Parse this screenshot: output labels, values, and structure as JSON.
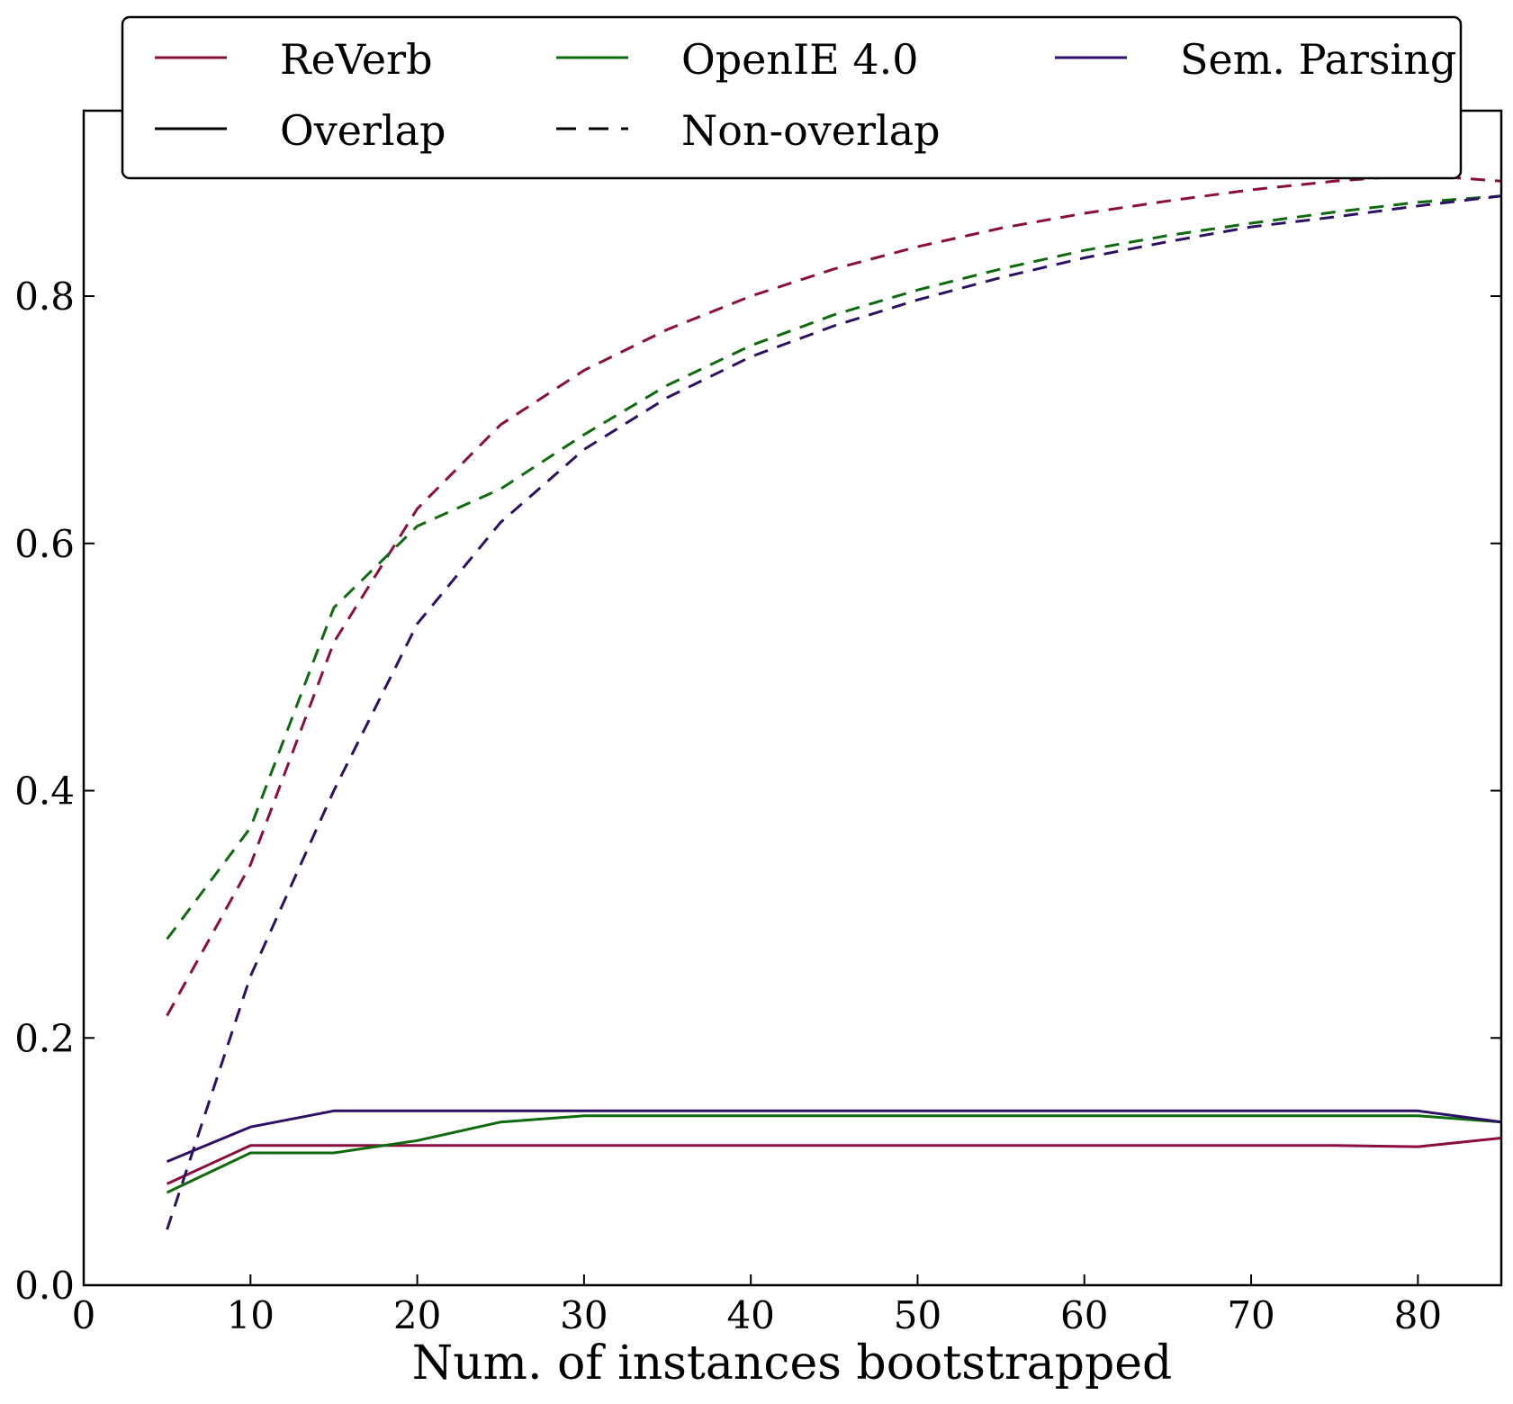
{
  "chart_data": {
    "type": "line",
    "title": "",
    "xlabel": "Num. of instances bootstrapped",
    "ylabel": "",
    "xlim": [
      0,
      85
    ],
    "ylim": [
      0.0,
      0.95
    ],
    "xticks": [
      0,
      10,
      20,
      30,
      40,
      50,
      60,
      70,
      80
    ],
    "xtick_labels": [
      "0",
      "10",
      "20",
      "30",
      "40",
      "50",
      "60",
      "70",
      "80"
    ],
    "yticks": [
      0.0,
      0.2,
      0.4,
      0.6,
      0.8
    ],
    "ytick_labels": [
      "0.0",
      "0.2",
      "0.4",
      "0.6",
      "0.8"
    ],
    "grid": false,
    "legend": {
      "placement": "top-center",
      "entries": [
        {
          "label": "ReVerb",
          "color": "#8b0d3e",
          "style": "solid"
        },
        {
          "label": "OpenIE 4.0",
          "color": "#0d6a0d",
          "style": "solid"
        },
        {
          "label": "Sem. Parsing",
          "color": "#2d0f63",
          "style": "solid"
        },
        {
          "label": "Overlap",
          "color": "#000000",
          "style": "solid"
        },
        {
          "label": "Non-overlap",
          "color": "#000000",
          "style": "dashed"
        }
      ]
    },
    "x": [
      5,
      10,
      15,
      20,
      25,
      30,
      35,
      40,
      45,
      50,
      55,
      60,
      65,
      70,
      75,
      80,
      85
    ],
    "series": [
      {
        "name": "ReVerb",
        "kind": "Overlap",
        "color": "#8b0d3e",
        "style": "solid",
        "values": [
          0.082,
          0.113,
          0.113,
          0.113,
          0.113,
          0.113,
          0.113,
          0.113,
          0.113,
          0.113,
          0.113,
          0.113,
          0.113,
          0.113,
          0.113,
          0.112,
          0.119
        ]
      },
      {
        "name": "OpenIE 4.0",
        "kind": "Overlap",
        "color": "#0d6a0d",
        "style": "solid",
        "values": [
          0.075,
          0.107,
          0.107,
          0.117,
          0.132,
          0.137,
          0.137,
          0.137,
          0.137,
          0.137,
          0.137,
          0.137,
          0.137,
          0.137,
          0.137,
          0.137,
          0.132
        ]
      },
      {
        "name": "Sem. Parsing",
        "kind": "Overlap",
        "color": "#2d0f63",
        "style": "solid",
        "values": [
          0.1,
          0.128,
          0.141,
          0.141,
          0.141,
          0.141,
          0.141,
          0.141,
          0.141,
          0.141,
          0.141,
          0.141,
          0.141,
          0.141,
          0.141,
          0.141,
          0.132
        ]
      },
      {
        "name": "ReVerb",
        "kind": "Non-overlap",
        "color": "#8b0d3e",
        "style": "dashed",
        "values": [
          0.218,
          0.34,
          0.52,
          0.628,
          0.696,
          0.74,
          0.773,
          0.8,
          0.822,
          0.84,
          0.855,
          0.867,
          0.877,
          0.886,
          0.893,
          0.898,
          0.893
        ]
      },
      {
        "name": "OpenIE 4.0",
        "kind": "Non-overlap",
        "color": "#0d6a0d",
        "style": "dashed",
        "values": [
          0.28,
          0.37,
          0.548,
          0.614,
          0.644,
          0.688,
          0.728,
          0.76,
          0.785,
          0.805,
          0.822,
          0.837,
          0.849,
          0.859,
          0.868,
          0.876,
          0.881
        ]
      },
      {
        "name": "Sem. Parsing",
        "kind": "Non-overlap",
        "color": "#2d0f63",
        "style": "dashed",
        "values": [
          0.045,
          0.25,
          0.4,
          0.535,
          0.617,
          0.676,
          0.718,
          0.751,
          0.776,
          0.797,
          0.815,
          0.831,
          0.844,
          0.856,
          0.864,
          0.873,
          0.881
        ]
      }
    ]
  }
}
